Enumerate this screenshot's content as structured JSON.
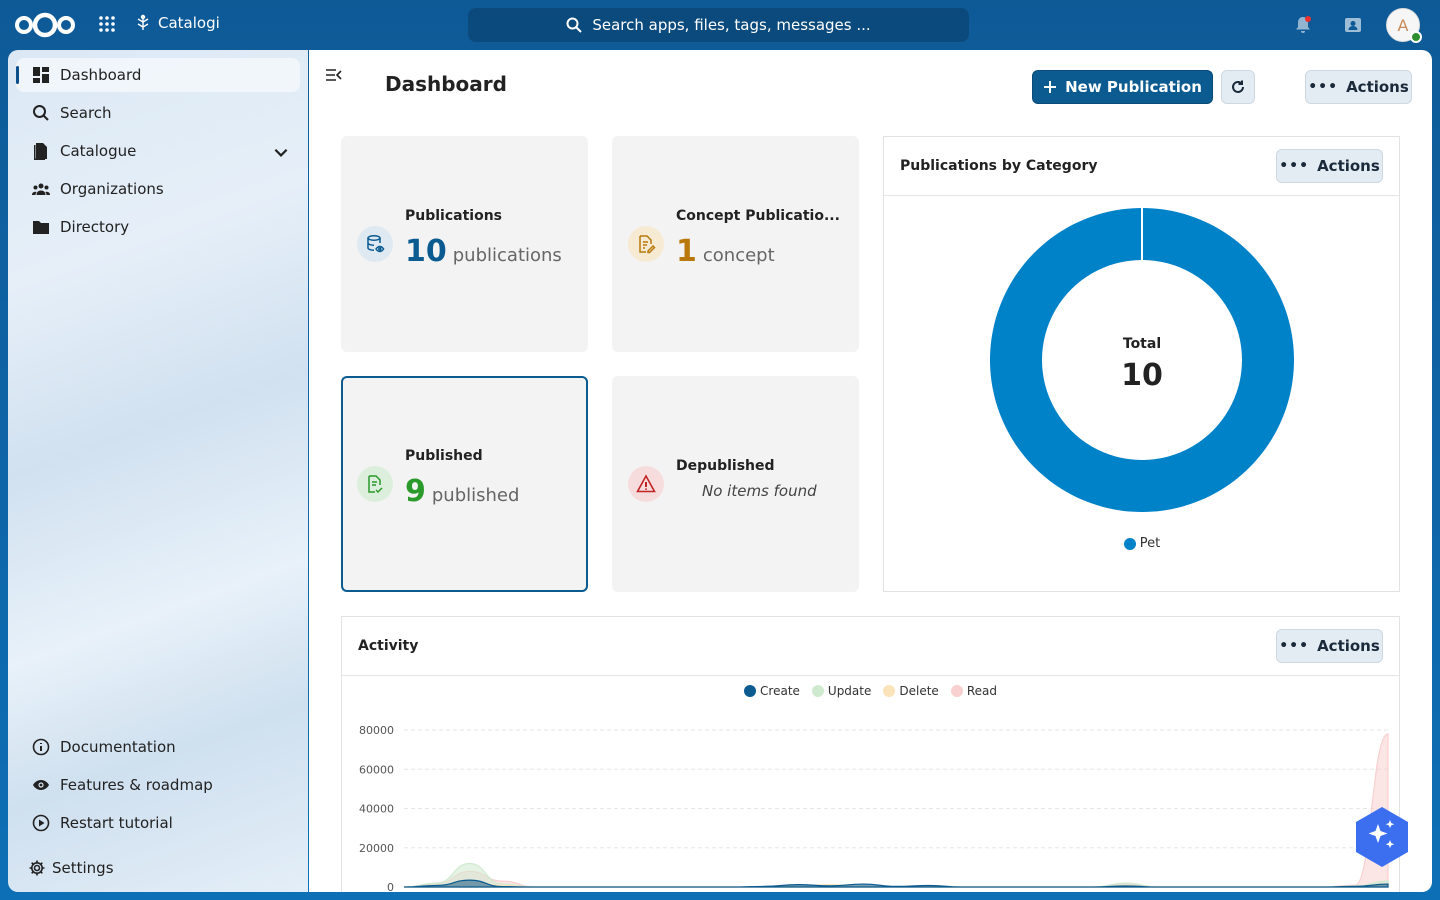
{
  "header": {
    "app_name": "Catalogi",
    "search_placeholder": "Search apps, files, tags, messages ...",
    "avatar_initial": "A"
  },
  "sidebar": {
    "items": [
      {
        "label": "Dashboard",
        "icon": "dashboard-icon",
        "active": true
      },
      {
        "label": "Search",
        "icon": "search-icon"
      },
      {
        "label": "Catalogue",
        "icon": "file-icon",
        "expandable": true
      },
      {
        "label": "Organizations",
        "icon": "group-icon"
      },
      {
        "label": "Directory",
        "icon": "folder-icon"
      }
    ],
    "bottom_items": [
      {
        "label": "Documentation",
        "icon": "info-icon"
      },
      {
        "label": "Features & roadmap",
        "icon": "eye-icon"
      },
      {
        "label": "Restart tutorial",
        "icon": "play-icon"
      }
    ],
    "settings_label": "Settings"
  },
  "main": {
    "title": "Dashboard",
    "new_publication_label": "New Publication",
    "actions_label": "Actions"
  },
  "cards": {
    "publications": {
      "title": "Publications",
      "value": "10",
      "unit": "publications",
      "color": "#0b5b91"
    },
    "concept": {
      "title": "Concept Publicatio...",
      "value": "1",
      "unit": "concept",
      "color": "#b8780a"
    },
    "published": {
      "title": "Published",
      "value": "9",
      "unit": "published",
      "color": "#2a9a2a"
    },
    "depublished": {
      "title": "Depublished",
      "empty_text": "No items found",
      "color": "#c22424"
    }
  },
  "pie_panel": {
    "title": "Publications by Category",
    "actions_label": "Actions",
    "total_label": "Total",
    "total_value": "10"
  },
  "activity_panel": {
    "title": "Activity",
    "actions_label": "Actions"
  },
  "chart_data": [
    {
      "type": "pie",
      "title": "Publications by Category",
      "categories": [
        "Pet"
      ],
      "values": [
        10
      ],
      "colors": [
        "#0082c9"
      ],
      "legend": "bottom"
    },
    {
      "type": "area",
      "title": "Activity",
      "series": [
        {
          "name": "Create",
          "color": "#0b5b91",
          "values": [
            0,
            800,
            3500,
            200,
            0,
            0,
            0,
            0,
            0,
            0,
            0,
            300,
            1200,
            600,
            1500,
            300,
            800,
            0,
            0,
            0,
            0,
            0,
            500,
            0,
            0,
            0,
            0,
            0,
            0,
            300,
            1500
          ]
        },
        {
          "name": "Update",
          "color": "#cfe9cf",
          "values": [
            0,
            2000,
            12000,
            1500,
            0,
            0,
            0,
            0,
            0,
            0,
            0,
            300,
            500,
            300,
            300,
            200,
            400,
            0,
            0,
            0,
            0,
            0,
            2000,
            0,
            0,
            0,
            0,
            0,
            0,
            500,
            3000
          ]
        },
        {
          "name": "Delete",
          "color": "#fbe3b9",
          "values": [
            0,
            800,
            2500,
            800,
            0,
            0,
            0,
            0,
            0,
            0,
            0,
            200,
            400,
            1200,
            300,
            200,
            300,
            0,
            0,
            0,
            0,
            0,
            700,
            0,
            0,
            0,
            0,
            0,
            0,
            300,
            1000
          ]
        },
        {
          "name": "Read",
          "color": "#f8d0d0",
          "values": [
            0,
            1500,
            8000,
            3000,
            0,
            0,
            0,
            0,
            0,
            0,
            0,
            200,
            300,
            200,
            200,
            100,
            200,
            0,
            0,
            0,
            0,
            0,
            1500,
            0,
            0,
            0,
            0,
            0,
            0,
            1000,
            78000
          ]
        }
      ],
      "ylim": [
        0,
        80000
      ],
      "y_ticks": [
        "80000",
        "60000",
        "40000",
        "20000",
        "0"
      ],
      "legend": "top",
      "grid": true
    }
  ]
}
